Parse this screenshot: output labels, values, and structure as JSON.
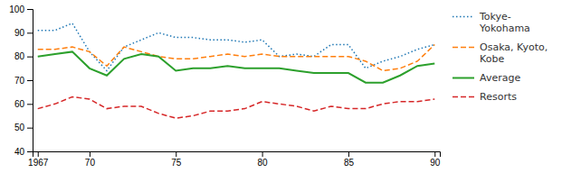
{
  "chart_data": {
    "type": "line",
    "x": [
      1967,
      1968,
      1969,
      1970,
      1971,
      1972,
      1973,
      1974,
      1975,
      1976,
      1977,
      1978,
      1979,
      1980,
      1981,
      1982,
      1983,
      1984,
      1985,
      1986,
      1987,
      1988,
      1989,
      1990
    ],
    "series": [
      {
        "name": "Tokye-\n Yokohama",
        "line_style": "dotted",
        "values": [
          91,
          91,
          94,
          82,
          74,
          84,
          87,
          90,
          88,
          88,
          87,
          87,
          86,
          87,
          80,
          81,
          80,
          85,
          85,
          75,
          78,
          80,
          83,
          85
        ]
      },
      {
        "name": "Osaka, Kyoto,\n Kobe",
        "line_style": "dashed",
        "values": [
          83,
          83,
          84,
          82,
          76,
          84,
          82,
          80,
          79,
          79,
          80,
          81,
          80,
          81,
          80,
          80,
          80,
          80,
          80,
          78,
          74,
          75,
          78,
          85
        ]
      },
      {
        "name": "Average",
        "line_style": "solid",
        "values": [
          80,
          81,
          82,
          75,
          72,
          79,
          81,
          80,
          74,
          75,
          75,
          76,
          75,
          75,
          75,
          74,
          73,
          73,
          73,
          69,
          69,
          72,
          76,
          77
        ]
      },
      {
        "name": "Resorts",
        "line_style": "dashed",
        "values": [
          58,
          60,
          63,
          62,
          58,
          59,
          59,
          56,
          54,
          55,
          57,
          57,
          58,
          61,
          60,
          59,
          57,
          59,
          58,
          58,
          60,
          61,
          61,
          62
        ]
      }
    ],
    "xlim": [
      1966.7,
      1990.3
    ],
    "xticks": [
      1967,
      {
        "value": 1970,
        "label": "70"
      },
      {
        "value": 1975,
        "label": "75"
      },
      {
        "value": 1980,
        "label": "80"
      },
      {
        "value": 1985,
        "label": "85"
      },
      {
        "value": 1990,
        "label": "90"
      }
    ],
    "ylim": [
      40,
      100
    ],
    "yticks": [
      40,
      50,
      60,
      70,
      80,
      90,
      100
    ],
    "grid": false,
    "legend": "right"
  }
}
